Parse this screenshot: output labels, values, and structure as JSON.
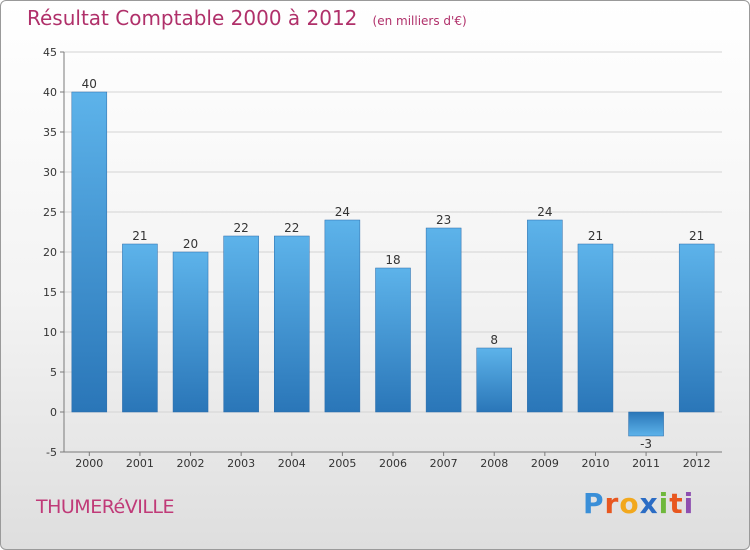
{
  "header": {
    "title": "Résultat Comptable 2000 à 2012",
    "subtitle": "(en milliers d'€)"
  },
  "footer": {
    "commune": "THUMERéVILLE",
    "brand": "Proxiti",
    "brand_letters": [
      {
        "ch": "P",
        "color": "#3a8fd8"
      },
      {
        "ch": "r",
        "color": "#e8571f"
      },
      {
        "ch": "o",
        "color": "#f2a81d"
      },
      {
        "ch": "x",
        "color": "#2b6cc4"
      },
      {
        "ch": "i",
        "color": "#6fb83c"
      },
      {
        "ch": "t",
        "color": "#e8571f"
      },
      {
        "ch": "i",
        "color": "#8e4fb0"
      }
    ]
  },
  "colors": {
    "bar_top": "#5db3ea",
    "bar_bottom": "#2a76b8",
    "axis": "#7a7a7a",
    "grid": "#d4d4d4"
  },
  "chart_data": {
    "type": "bar",
    "title": "Résultat Comptable 2000 à 2012",
    "xlabel": "",
    "ylabel": "",
    "categories": [
      "2000",
      "2001",
      "2002",
      "2003",
      "2004",
      "2005",
      "2006",
      "2007",
      "2008",
      "2009",
      "2010",
      "2011",
      "2012"
    ],
    "values": [
      40,
      21,
      20,
      22,
      22,
      24,
      18,
      23,
      8,
      24,
      21,
      -3,
      21
    ],
    "ylim": [
      -5,
      45
    ],
    "yticks": [
      -5,
      0,
      5,
      10,
      15,
      20,
      25,
      30,
      35,
      40,
      45
    ],
    "grid": true
  }
}
